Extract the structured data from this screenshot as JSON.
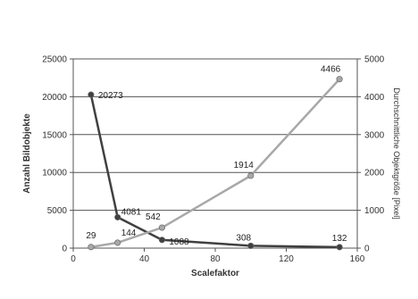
{
  "chart_data": {
    "type": "line",
    "title": "",
    "xlabel": "Scalefaktor",
    "ylabel": "Anzahl Bildobjekte",
    "y2label": "Durchschnittliche Objektgröße [Pixel]",
    "xlim": [
      0,
      160
    ],
    "ylim": [
      0,
      25000
    ],
    "y2lim": [
      0,
      5000
    ],
    "xticks": [
      "0",
      "40",
      "80",
      "120",
      "160"
    ],
    "yticks": [
      "0",
      "5000",
      "10000",
      "15000",
      "20000",
      "25000"
    ],
    "y2ticks": [
      "0",
      "1000",
      "2000",
      "3000",
      "4000",
      "5000"
    ],
    "grid": true,
    "legend": "none",
    "series": [
      {
        "axis": "left",
        "color": "#404040",
        "points": [
          {
            "x": 10,
            "y": 20273,
            "label": "20273"
          },
          {
            "x": 25,
            "y": 4081,
            "label": "4081"
          },
          {
            "x": 50,
            "y": 1088,
            "label": "1088"
          },
          {
            "x": 100,
            "y": 308,
            "label": "308"
          },
          {
            "x": 150,
            "y": 132,
            "label": "132"
          }
        ]
      },
      {
        "axis": "right",
        "color": "#a8a8a8",
        "points": [
          {
            "x": 10,
            "y": 29,
            "label": "29"
          },
          {
            "x": 25,
            "y": 144,
            "label": "144"
          },
          {
            "x": 50,
            "y": 542,
            "label": "542"
          },
          {
            "x": 100,
            "y": 1914,
            "label": "1914"
          },
          {
            "x": 150,
            "y": 4466,
            "label": "4466"
          }
        ]
      }
    ]
  }
}
